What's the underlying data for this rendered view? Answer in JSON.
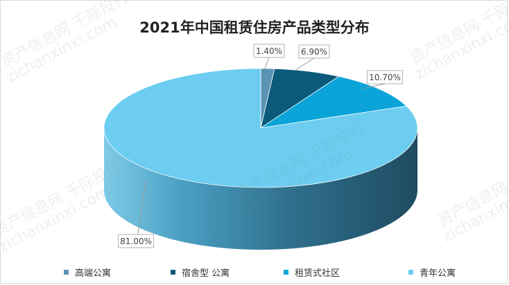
{
  "chart_data": {
    "type": "pie",
    "title": "2021年中国租赁住房产品类型分布",
    "slices": [
      {
        "label": "高端公寓",
        "value": 1.4,
        "display": "1.40%",
        "color": "#5b93b4"
      },
      {
        "label": "宿舍型 公寓",
        "value": 6.9,
        "display": "6.90%",
        "color": "#0b5a7a"
      },
      {
        "label": "租赁式社区",
        "value": 10.7,
        "display": "10.70%",
        "color": "#0aa4d8"
      },
      {
        "label": "青年公寓",
        "value": 81.0,
        "display": "81.00%",
        "color": "#6ccdf0"
      }
    ],
    "legend_position": "bottom"
  },
  "watermarks": {
    "line1": "资产信息网 千际投行",
    "line2": "zichanxinxi.com"
  }
}
